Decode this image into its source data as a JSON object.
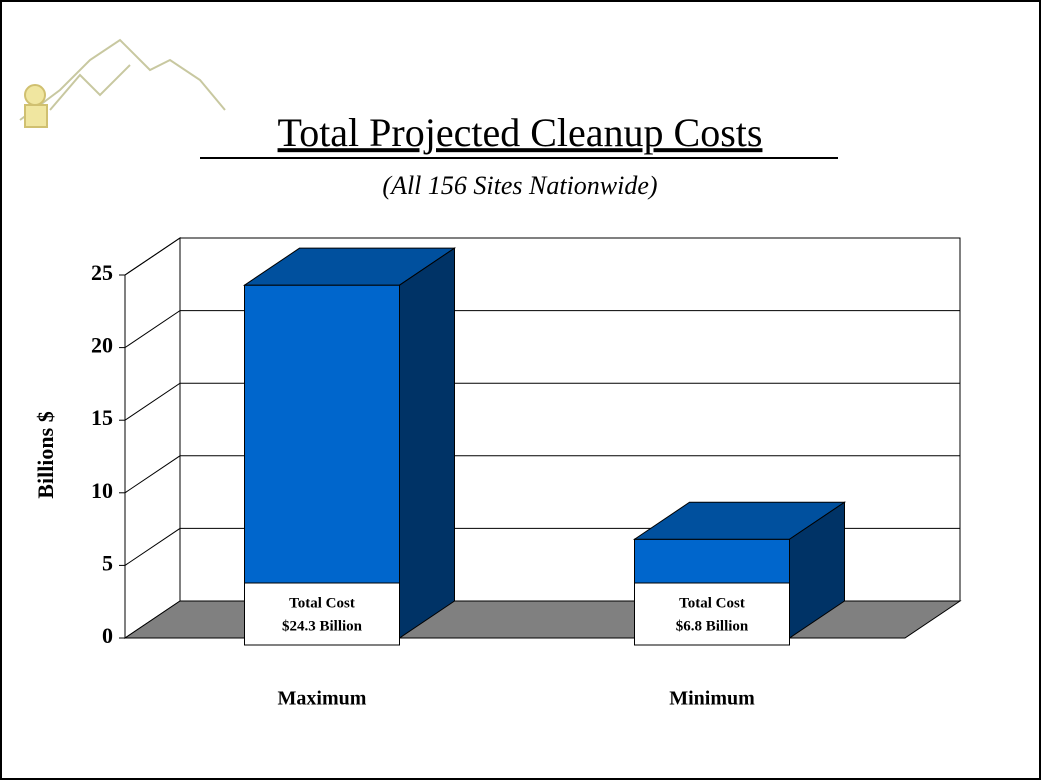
{
  "chart_data": {
    "type": "bar3d",
    "title": "Total Projected Cleanup Costs",
    "subtitle": "(All 156 Sites Nationwide)",
    "y_label": "Billions $",
    "categories": [
      "Maximum",
      "Minimum"
    ],
    "values": [
      24.3,
      6.8
    ],
    "value_label_heading": "Total Cost",
    "value_labels": [
      "$24.3 Billion",
      "$6.8 Billion"
    ],
    "colors": {
      "front": "#0066cc",
      "top": "#00509e",
      "side": "#003366",
      "floor": "#808080"
    },
    "ylim": [
      0,
      25
    ],
    "yticks": [
      0,
      5,
      10,
      15,
      20,
      25
    ],
    "grid": true
  }
}
